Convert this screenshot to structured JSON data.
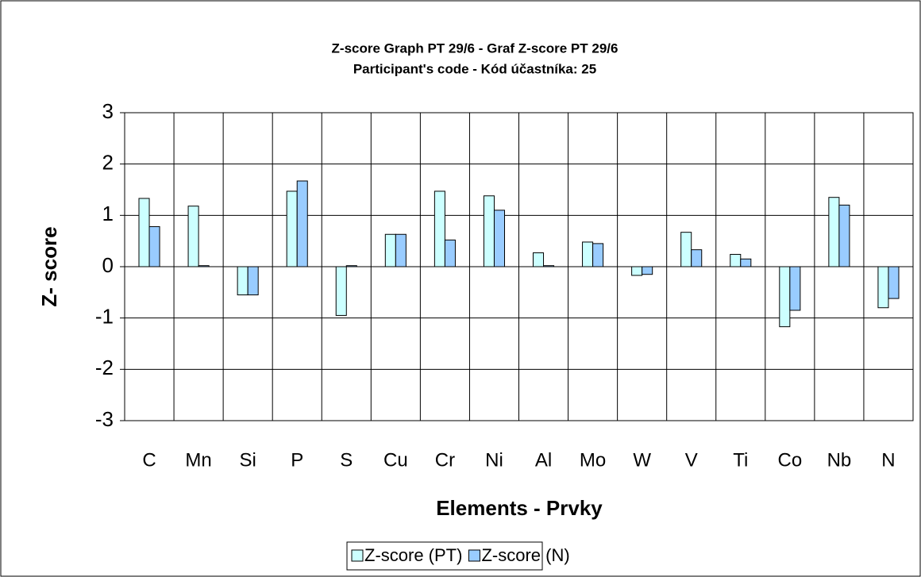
{
  "chart_data": {
    "type": "bar",
    "title": "Z-score Graph PT 29/6 - Graf Z-score PT 29/6",
    "subtitle": "Participant's code - Kód účastníka:  25",
    "x_label": "Elements - Prvky",
    "y_label": "Z- score",
    "categories": [
      "C",
      "Mn",
      "Si",
      "P",
      "S",
      "Cu",
      "Cr",
      "Ni",
      "Al",
      "Mo",
      "W",
      "V",
      "Ti",
      "Co",
      "Nb",
      "N"
    ],
    "series": [
      {
        "name": "Z-score (PT)",
        "color": "#ccffff",
        "values": [
          1.33,
          1.18,
          -0.55,
          1.47,
          -0.95,
          0.63,
          1.47,
          1.38,
          0.27,
          0.48,
          -0.17,
          0.67,
          0.24,
          -1.17,
          1.35,
          -0.8
        ]
      },
      {
        "name": "Z-score (N)",
        "color": "#99ccff",
        "values": [
          0.78,
          0.02,
          -0.55,
          1.67,
          0.02,
          0.63,
          0.52,
          1.1,
          0.02,
          0.45,
          -0.15,
          0.33,
          0.15,
          -0.85,
          1.2,
          -0.62
        ]
      }
    ],
    "ylim": [
      -3,
      3
    ],
    "yticks": [
      -3,
      -2,
      -1,
      0,
      1,
      2,
      3
    ],
    "grid": true,
    "legend": "bottom"
  }
}
